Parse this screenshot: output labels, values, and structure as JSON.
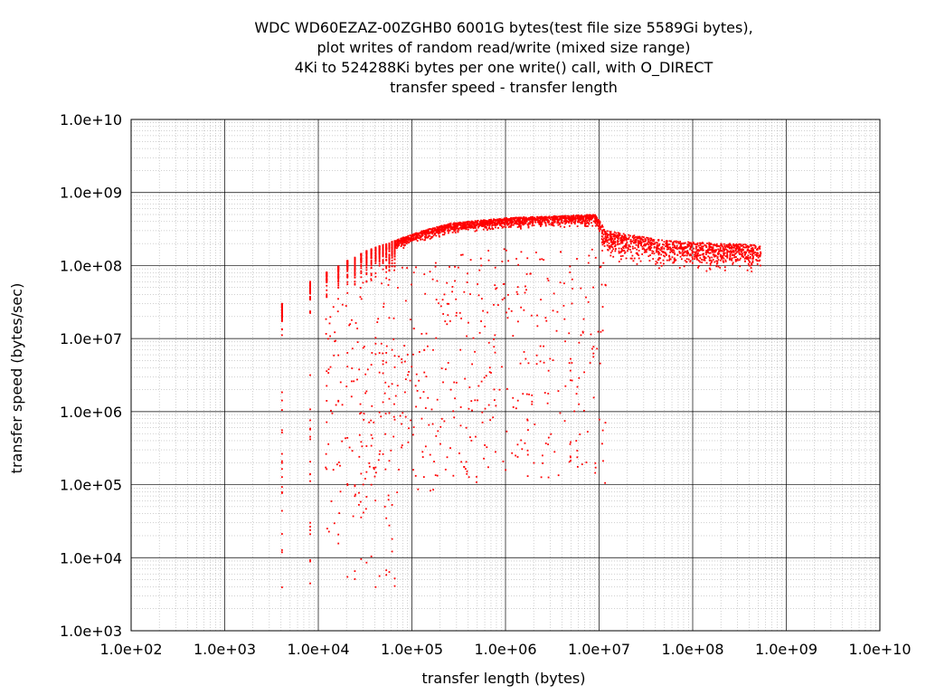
{
  "chart_data": {
    "type": "scatter",
    "title_lines": [
      "WDC WD60EZAZ-00ZGHB0 6001G bytes(test file size 5589Gi bytes),",
      "plot writes of random read/write (mixed size range)",
      "4Ki to 524288Ki bytes per one write() call, with O_DIRECT",
      "transfer speed - transfer length"
    ],
    "xlabel": "transfer length (bytes)",
    "ylabel": "transfer speed (bytes/sec)",
    "x_scale": "log",
    "y_scale": "log",
    "xlim": [
      100,
      10000000000
    ],
    "ylim": [
      1000,
      10000000000
    ],
    "x_tick_labels": [
      "1.0e+02",
      "1.0e+03",
      "1.0e+04",
      "1.0e+05",
      "1.0e+06",
      "1.0e+07",
      "1.0e+08",
      "1.0e+09",
      "1.0e+10"
    ],
    "y_tick_labels": [
      "1.0e+03",
      "1.0e+04",
      "1.0e+05",
      "1.0e+06",
      "1.0e+07",
      "1.0e+08",
      "1.0e+09",
      "1.0e+10"
    ],
    "grid": true,
    "legend": "none",
    "series": [
      {
        "color": "#ff0000",
        "marker": "dot",
        "x_range": [
          4096,
          536870912
        ],
        "envelope_upper": [
          [
            4096,
            30000000
          ],
          [
            8192,
            60000000
          ],
          [
            16384,
            100000000
          ],
          [
            32768,
            160000000
          ],
          [
            65536,
            220000000
          ],
          [
            131072,
            300000000
          ],
          [
            262144,
            380000000
          ],
          [
            1048576,
            450000000
          ],
          [
            4194304,
            480000000
          ],
          [
            9000000,
            500000000
          ],
          [
            12000000,
            300000000
          ],
          [
            50000000,
            220000000
          ],
          [
            536870912,
            190000000
          ]
        ],
        "outliers_min_y": 3600
      }
    ]
  }
}
